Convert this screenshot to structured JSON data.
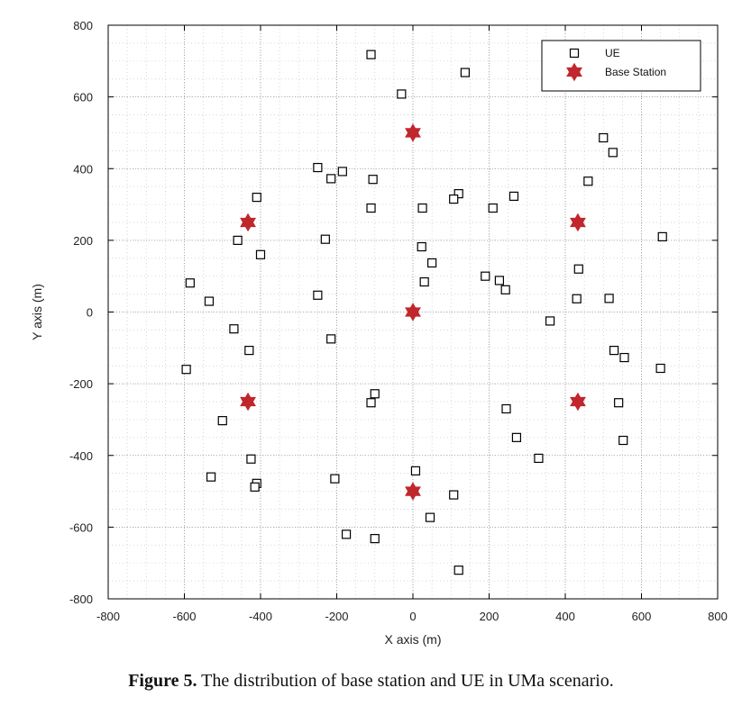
{
  "caption": {
    "label": "Figure 5.",
    "text": " The distribution of base station and UE in UMa scenario."
  },
  "chart_data": {
    "type": "scatter",
    "title": "",
    "xlabel": "X axis (m)",
    "ylabel": "Y axis (m)",
    "xlim": [
      -800,
      800
    ],
    "ylim": [
      -800,
      800
    ],
    "xticks": [
      -800,
      -600,
      -400,
      -200,
      0,
      200,
      400,
      600,
      800
    ],
    "yticks": [
      -800,
      -600,
      -400,
      -200,
      0,
      200,
      400,
      600,
      800
    ],
    "grid": true,
    "minor_grid": true,
    "legend_position": "top-right",
    "series": [
      {
        "name": "UE",
        "marker": "square",
        "color": "#000000",
        "points": [
          [
            -110,
            718
          ],
          [
            137,
            668
          ],
          [
            -30,
            608
          ],
          [
            500,
            486
          ],
          [
            525,
            445
          ],
          [
            -250,
            403
          ],
          [
            -185,
            392
          ],
          [
            -215,
            372
          ],
          [
            -105,
            370
          ],
          [
            460,
            365
          ],
          [
            -410,
            320
          ],
          [
            120,
            330
          ],
          [
            107,
            315
          ],
          [
            265,
            323
          ],
          [
            -110,
            290
          ],
          [
            25,
            290
          ],
          [
            210,
            290
          ],
          [
            -460,
            200
          ],
          [
            -230,
            203
          ],
          [
            655,
            210
          ],
          [
            23,
            182
          ],
          [
            -400,
            160
          ],
          [
            50,
            137
          ],
          [
            435,
            120
          ],
          [
            190,
            100
          ],
          [
            227,
            88
          ],
          [
            30,
            84
          ],
          [
            243,
            62
          ],
          [
            -585,
            81
          ],
          [
            -250,
            47
          ],
          [
            -535,
            30
          ],
          [
            430,
            37
          ],
          [
            515,
            38
          ],
          [
            360,
            -25
          ],
          [
            -470,
            -47
          ],
          [
            -215,
            -75
          ],
          [
            -430,
            -107
          ],
          [
            528,
            -107
          ],
          [
            555,
            -127
          ],
          [
            -595,
            -160
          ],
          [
            650,
            -157
          ],
          [
            -100,
            -228
          ],
          [
            -110,
            -253
          ],
          [
            540,
            -253
          ],
          [
            245,
            -270
          ],
          [
            -500,
            -303
          ],
          [
            272,
            -350
          ],
          [
            552,
            -358
          ],
          [
            330,
            -408
          ],
          [
            -425,
            -410
          ],
          [
            -530,
            -460
          ],
          [
            7,
            -443
          ],
          [
            -205,
            -465
          ],
          [
            -410,
            -478
          ],
          [
            -415,
            -488
          ],
          [
            107,
            -510
          ],
          [
            45,
            -573
          ],
          [
            -175,
            -620
          ],
          [
            -100,
            -632
          ],
          [
            120,
            -720
          ]
        ]
      },
      {
        "name": "Base Station",
        "marker": "hexagram",
        "color": "#c0272d",
        "points": [
          [
            0,
            500
          ],
          [
            -433,
            250
          ],
          [
            433,
            250
          ],
          [
            0,
            0
          ],
          [
            -433,
            -250
          ],
          [
            433,
            -250
          ],
          [
            0,
            -500
          ]
        ]
      }
    ]
  }
}
